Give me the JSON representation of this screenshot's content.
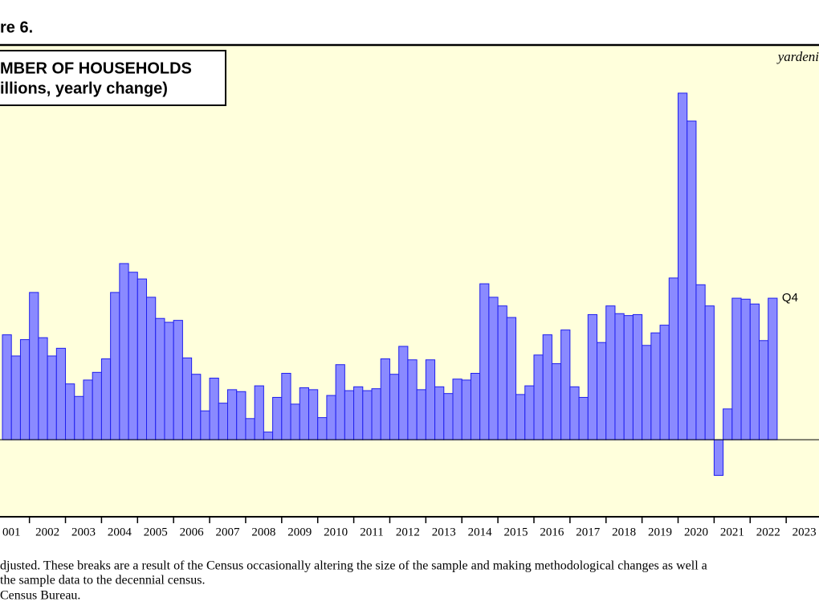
{
  "figure_label": "re 6.",
  "chart_data": {
    "type": "bar",
    "title": "MBER OF HOUSEHOLDS",
    "subtitle": "illions, yearly change)",
    "source_mark": "yardeni",
    "annotation": "Q4",
    "x_labels": [
      "001",
      "2002",
      "2003",
      "2004",
      "2005",
      "2006",
      "2007",
      "2008",
      "2009",
      "2010",
      "2011",
      "2012",
      "2013",
      "2014",
      "2015",
      "2016",
      "2017",
      "2018",
      "2019",
      "2020",
      "2021",
      "2022",
      "2023"
    ],
    "values": [
      1.09,
      0.87,
      1.04,
      1.53,
      1.06,
      0.87,
      0.95,
      0.58,
      0.45,
      0.62,
      0.7,
      0.84,
      1.53,
      1.83,
      1.74,
      1.67,
      1.48,
      1.26,
      1.22,
      1.24,
      0.85,
      0.68,
      0.3,
      0.64,
      0.38,
      0.52,
      0.5,
      0.22,
      0.56,
      0.08,
      0.44,
      0.69,
      0.37,
      0.54,
      0.52,
      0.23,
      0.46,
      0.78,
      0.51,
      0.55,
      0.51,
      0.53,
      0.84,
      0.68,
      0.97,
      0.83,
      0.52,
      0.83,
      0.55,
      0.48,
      0.63,
      0.62,
      0.69,
      1.62,
      1.48,
      1.39,
      1.27,
      0.47,
      0.56,
      0.88,
      1.09,
      0.79,
      1.14,
      0.55,
      0.44,
      1.3,
      1.01,
      1.39,
      1.31,
      1.29,
      1.3,
      0.98,
      1.11,
      1.19,
      1.68,
      3.6,
      3.31,
      1.61,
      1.39,
      -0.37,
      0.32,
      1.47,
      1.46,
      1.41,
      1.03,
      1.47
    ],
    "color": "#8a8aff",
    "edge_color": "#2020ee",
    "ylim": [
      -0.8,
      4.1
    ]
  },
  "notes": [
    "djusted. These breaks are a result of the Census occasionally altering the size of the sample and making methodological changes as well a",
    " the sample data to the decennial census.",
    "Census Bureau."
  ]
}
